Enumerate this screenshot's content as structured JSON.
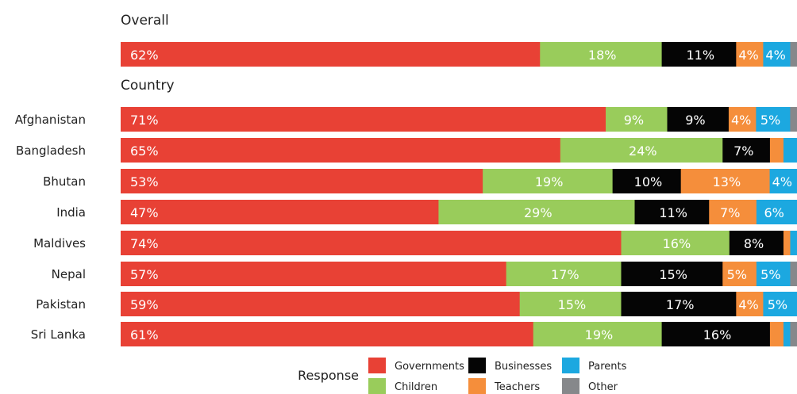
{
  "chart_data": {
    "type": "bar",
    "orientation": "horizontal",
    "stacked": true,
    "sections": [
      {
        "title": "Overall",
        "rows": [
          {
            "name": "",
            "values": [
              62,
              18,
              11,
              4,
              4,
              1
            ]
          }
        ]
      },
      {
        "title": "Country",
        "rows": [
          {
            "name": "Afghanistan",
            "values": [
              71,
              9,
              9,
              4,
              5,
              1
            ]
          },
          {
            "name": "Bangladesh",
            "values": [
              65,
              24,
              7,
              2,
              2,
              0
            ]
          },
          {
            "name": "Bhutan",
            "values": [
              53,
              19,
              10,
              13,
              4,
              0
            ]
          },
          {
            "name": "India",
            "values": [
              47,
              29,
              11,
              7,
              6,
              0
            ]
          },
          {
            "name": "Maldives",
            "values": [
              74,
              16,
              8,
              1,
              1,
              0
            ]
          },
          {
            "name": "Nepal",
            "values": [
              57,
              17,
              15,
              5,
              5,
              1
            ]
          },
          {
            "name": "Pakistan",
            "values": [
              59,
              15,
              17,
              4,
              5,
              0
            ]
          },
          {
            "name": "Sri Lanka",
            "values": [
              61,
              19,
              16,
              2,
              1,
              1
            ]
          }
        ]
      }
    ],
    "series": [
      {
        "name": "Governments",
        "color": "#e84135",
        "label_color": "#ffffff"
      },
      {
        "name": "Children",
        "color": "#99cc5b",
        "label_color": "#ffffff"
      },
      {
        "name": "Businesses",
        "color": "#050505",
        "label_color": "#ffffff"
      },
      {
        "name": "Teachers",
        "color": "#f58e3b",
        "label_color": "#ffffff"
      },
      {
        "name": "Parents",
        "color": "#1ca8e0",
        "label_color": "#ffffff"
      },
      {
        "name": "Other",
        "color": "#86888b",
        "label_color": "#ffffff"
      }
    ],
    "min_label_percent": 4,
    "legend": {
      "title": "Response",
      "placement": "bottom"
    }
  }
}
